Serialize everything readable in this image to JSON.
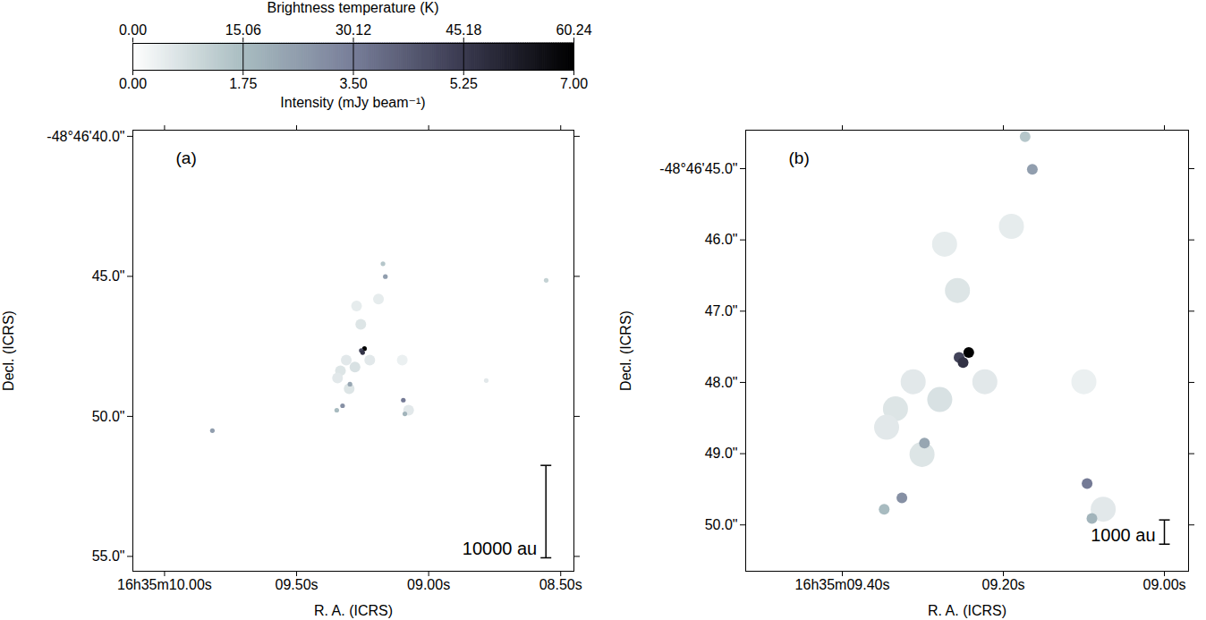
{
  "chart_data": {
    "type": "image",
    "colorbar": {
      "label": "Intensity (mJy beam⁻¹)",
      "lim": [
        0,
        7
      ],
      "ticks": [
        {
          "value": 0,
          "label": "0.00"
        },
        1.75,
        {
          "value": 3.5,
          "label": "3.50"
        },
        5.25,
        {
          "value": 7,
          "label": "7.00"
        }
      ],
      "temperature_label": "Brightness temperature (K)",
      "temperature_lim": [
        0,
        60.24
      ],
      "temperature_ticks": [
        {
          "value": 0,
          "label": "0.00"
        },
        15.06,
        30.12,
        45.18,
        60.24
      ]
    },
    "panels": [
      {
        "panel": "(a)",
        "xlabel": "R. A. (ICRS)",
        "ylabel": "Decl. (ICRS)",
        "xlim": [
          10.12,
          8.45
        ],
        "xticks": [
          {
            "value": 10,
            "label": "16h35m10.00s"
          },
          {
            "value": 9.5,
            "label": "09.50s"
          },
          {
            "value": 9,
            "label": "09.00s"
          },
          {
            "value": 8.5,
            "label": "08.50s"
          }
        ],
        "ylim": [
          55.53,
          39.78
        ],
        "yticks": [
          {
            "value": 40,
            "label": "-48°46'40.0\""
          },
          {
            "value": 45,
            "label": "45.0\""
          },
          {
            "value": 50,
            "label": "50.0\""
          },
          {
            "value": 55,
            "label": "55.0\""
          }
        ],
        "scale_bar": {
          "label": "10000 au",
          "x": 8.556,
          "y1": 51.75,
          "y2": 55.05
        }
      },
      {
        "panel": "(b)",
        "xlabel": "R. A. (ICRS)",
        "ylabel": "Decl. (ICRS)",
        "xlim": [
          9.52,
          8.97
        ],
        "xticks": [
          {
            "value": 9.4,
            "label": "16h35m09.40s"
          },
          {
            "value": 9.2,
            "label": "09.20s"
          },
          {
            "value": 9,
            "label": "09.00s"
          }
        ],
        "ylim": [
          50.65,
          44.46
        ],
        "yticks": [
          {
            "value": 45,
            "label": "-48°46'45.0\""
          },
          {
            "value": 46,
            "label": "46.0\""
          },
          {
            "value": 47,
            "label": "47.0\""
          },
          {
            "value": 48,
            "label": "48.0\""
          },
          {
            "value": 49,
            "label": "49.0\""
          },
          {
            "value": 50,
            "label": "50.0\""
          }
        ],
        "scale_bar": {
          "label": "1000 au",
          "x": 9.0,
          "y1": 49.93,
          "y2": 50.27
        }
      }
    ],
    "compact_sources": [
      {
        "ra": 9.243,
        "dec": 47.58,
        "intensity": 7.0
      },
      {
        "ra": 9.255,
        "dec": 47.65,
        "intensity": 5.0
      },
      {
        "ra": 9.25,
        "dec": 47.72,
        "intensity": 5.5
      },
      {
        "ra": 9.096,
        "dec": 49.42,
        "intensity": 3.6
      },
      {
        "ra": 9.326,
        "dec": 49.62,
        "intensity": 3.0
      },
      {
        "ra": 9.298,
        "dec": 48.85,
        "intensity": 2.4
      },
      {
        "ra": 9.09,
        "dec": 49.91,
        "intensity": 2.0
      },
      {
        "ra": 9.164,
        "dec": 45.01,
        "intensity": 2.6
      },
      {
        "ra": 9.173,
        "dec": 44.55,
        "intensity": 1.5
      },
      {
        "ra": 9.348,
        "dec": 49.78,
        "intensity": 1.8
      },
      {
        "ra": 9.819,
        "dec": 50.51,
        "intensity": 2.6
      },
      {
        "ra": 8.555,
        "dec": 45.14,
        "intensity": 1.2
      },
      {
        "ra": 8.782,
        "dec": 48.72,
        "intensity": 0.6
      }
    ],
    "extended_emission": [
      {
        "ra": 9.257,
        "dec": 46.71,
        "intensity": 0.7
      },
      {
        "ra": 9.273,
        "dec": 46.06,
        "intensity": 0.5
      },
      {
        "ra": 9.279,
        "dec": 48.24,
        "intensity": 0.8
      },
      {
        "ra": 9.334,
        "dec": 48.37,
        "intensity": 0.7
      },
      {
        "ra": 9.345,
        "dec": 48.63,
        "intensity": 0.6
      },
      {
        "ra": 9.076,
        "dec": 49.78,
        "intensity": 0.6
      },
      {
        "ra": 9.19,
        "dec": 45.81,
        "intensity": 0.5
      },
      {
        "ra": 9.223,
        "dec": 47.99,
        "intensity": 0.6
      },
      {
        "ra": 9.301,
        "dec": 49.01,
        "intensity": 0.7
      },
      {
        "ra": 9.1,
        "dec": 47.99,
        "intensity": 0.4
      },
      {
        "ra": 9.312,
        "dec": 47.99,
        "intensity": 0.6
      }
    ]
  }
}
